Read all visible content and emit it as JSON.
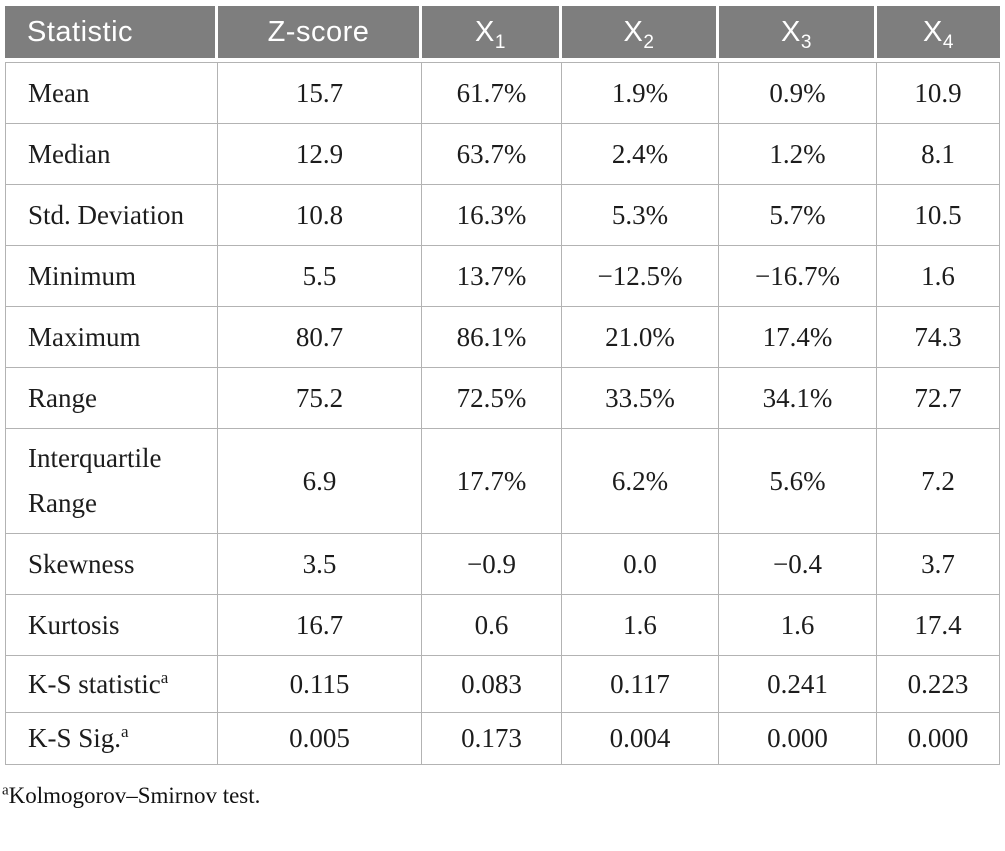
{
  "colors": {
    "header_bg": "#7e7e7e",
    "header_text": "#ffffff",
    "grid_border": "#b3b3b3",
    "body_text": "#1c1c1c"
  },
  "table": {
    "columns": [
      {
        "base": "Statistic"
      },
      {
        "base": "Z-score"
      },
      {
        "base": "X",
        "sub": "1"
      },
      {
        "base": "X",
        "sub": "2"
      },
      {
        "base": "X",
        "sub": "3"
      },
      {
        "base": "X",
        "sub": "4"
      }
    ],
    "rows": [
      {
        "label": "Mean",
        "values": [
          "15.7",
          "61.7%",
          "1.9%",
          "0.9%",
          "10.9"
        ]
      },
      {
        "label": "Median",
        "values": [
          "12.9",
          "63.7%",
          "2.4%",
          "1.2%",
          "8.1"
        ]
      },
      {
        "label": "Std. Deviation",
        "values": [
          "10.8",
          "16.3%",
          "5.3%",
          "5.7%",
          "10.5"
        ]
      },
      {
        "label": "Minimum",
        "values": [
          "5.5",
          "13.7%",
          "−12.5%",
          "−16.7%",
          "1.6"
        ]
      },
      {
        "label": "Maximum",
        "values": [
          "80.7",
          "86.1%",
          "21.0%",
          "17.4%",
          "74.3"
        ]
      },
      {
        "label": "Range",
        "values": [
          "75.2",
          "72.5%",
          "33.5%",
          "34.1%",
          "72.7"
        ]
      },
      {
        "label": "Interquartile Range",
        "values": [
          "6.9",
          "17.7%",
          "6.2%",
          "5.6%",
          "7.2"
        ]
      },
      {
        "label": "Skewness",
        "values": [
          "3.5",
          "−0.9",
          "0.0",
          "−0.4",
          "3.7"
        ]
      },
      {
        "label": "Kurtosis",
        "values": [
          "16.7",
          "0.6",
          "1.6",
          "1.6",
          "17.4"
        ]
      },
      {
        "label": "K-S statistic",
        "sup": "a",
        "values": [
          "0.115",
          "0.083",
          "0.117",
          "0.241",
          "0.223"
        ]
      },
      {
        "label": "K-S Sig.",
        "sup": "a",
        "values": [
          "0.005",
          "0.173",
          "0.004",
          "0.000",
          "0.000"
        ]
      }
    ]
  },
  "footnote": {
    "marker": "a",
    "text": "Kolmogorov–Smirnov test."
  }
}
